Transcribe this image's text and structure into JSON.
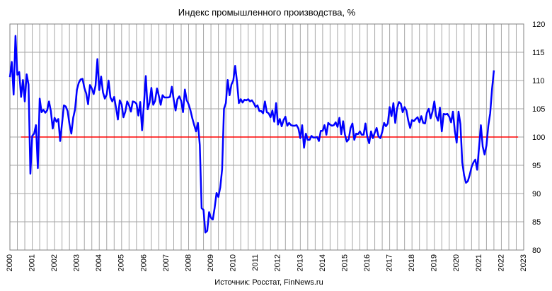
{
  "chart_data": {
    "type": "line",
    "title": "Индекс промышленного производства, %",
    "source": "Источник: Росстат, FinNews.ru",
    "xlabel": "",
    "ylabel": "",
    "x_tick_labels": [
      "2000",
      "2001",
      "2002",
      "2003",
      "2004",
      "2005",
      "2006",
      "2007",
      "2008",
      "2009",
      "2010",
      "2011",
      "2012",
      "2013",
      "2014",
      "2015",
      "2016",
      "2017",
      "2018",
      "2019",
      "2020",
      "2021",
      "2022",
      "2023"
    ],
    "x_range": [
      "2000-01",
      "2023-01"
    ],
    "ylim": [
      80,
      120
    ],
    "y_tick_labels": [
      "80",
      "85",
      "90",
      "95",
      "100",
      "105",
      "110",
      "115",
      "120"
    ],
    "y_axis_position": "right",
    "grid": true,
    "grid_vertical_per_year": 3,
    "reference_line": {
      "value": 100,
      "color": "#ff0000"
    },
    "series": [
      {
        "color": "#0000ff",
        "x_start": "2000-01",
        "frequency": "monthly",
        "values": [
          110.6,
          113.3,
          107.5,
          117.9,
          111.0,
          111.5,
          107.1,
          110.1,
          106.3,
          111.1,
          109.3,
          93.5,
          100.2,
          100.6,
          102.1,
          94.5,
          106.8,
          104.4,
          104.8,
          104.3,
          104.7,
          106.3,
          104.6,
          101.5,
          103.4,
          102.7,
          103.2,
          99.3,
          102.4,
          105.6,
          105.4,
          104.6,
          102.3,
          100.6,
          103.4,
          104.9,
          108.4,
          109.6,
          110.2,
          110.3,
          108.7,
          107.7,
          105.8,
          109.2,
          108.6,
          107.6,
          109.1,
          113.8,
          108.3,
          110.7,
          107.9,
          106.8,
          107.5,
          110.0,
          107.0,
          106.3,
          107.1,
          105.2,
          103.1,
          106.5,
          105.8,
          103.5,
          104.5,
          106.3,
          105.6,
          104.5,
          106.3,
          106.2,
          105.9,
          103.8,
          106.2,
          101.2,
          105.8,
          110.8,
          104.9,
          106.1,
          108.7,
          105.7,
          106.4,
          108.6,
          107.3,
          105.7,
          107.4,
          107.0,
          107.0,
          107.0,
          107.1,
          108.9,
          106.6,
          104.7,
          106.7,
          107.2,
          106.4,
          104.4,
          108.4,
          106.5,
          105.8,
          104.7,
          103.3,
          102.1,
          101.0,
          102.5,
          98.6,
          87.4,
          87.1,
          83.1,
          83.4,
          86.7,
          85.7,
          85.4,
          87.5,
          90.1,
          89.4,
          91.1,
          94.3,
          105.0,
          106.0,
          110.1,
          107.4,
          109.3,
          110.0,
          112.6,
          109.8,
          106.0,
          106.7,
          106.1,
          106.6,
          106.5,
          106.7,
          106.3,
          106.5,
          106.0,
          105.3,
          105.6,
          104.6,
          104.6,
          104.2,
          106.3,
          104.4,
          104.2,
          103.5,
          104.7,
          102.7,
          106.0,
          102.2,
          103.2,
          101.9,
          103.0,
          103.6,
          102.0,
          102.5,
          102.1,
          102.0,
          102.0,
          102.1,
          101.5,
          99.8,
          102.1,
          98.1,
          100.6,
          99.5,
          99.5,
          100.2,
          99.9,
          99.9,
          100.0,
          99.3,
          101.1,
          101.1,
          102.1,
          100.4,
          102.5,
          102.2,
          102.0,
          102.1,
          102.6,
          101.8,
          103.4,
          100.5,
          102.8,
          100.4,
          99.2,
          99.6,
          101.6,
          102.4,
          99.5,
          100.6,
          100.5,
          101.0,
          100.4,
          100.4,
          102.4,
          100.0,
          98.9,
          101.0,
          99.8,
          100.8,
          101.6,
          100.1,
          99.8,
          100.9,
          102.5,
          101.9,
          102.4,
          105.3,
          103.7,
          106.0,
          102.5,
          105.1,
          106.2,
          105.9,
          104.4,
          105.3,
          104.7,
          102.9,
          101.6,
          103.0,
          102.8,
          103.2,
          103.5,
          102.6,
          103.7,
          102.5,
          102.4,
          104.3,
          105.0,
          103.3,
          104.5,
          106.3,
          103.7,
          102.9,
          105.2,
          101.0,
          104.1,
          104.0,
          104.1,
          103.6,
          102.6,
          104.5,
          101.1,
          99.0,
          104.5,
          102.3,
          95.5,
          93.2,
          91.9,
          92.2,
          93.3,
          94.7,
          95.5,
          96.0,
          94.2,
          98.1,
          102.1,
          98.3,
          96.9,
          98.5,
          102.0,
          104.2,
          108.5,
          111.8
        ]
      }
    ]
  }
}
